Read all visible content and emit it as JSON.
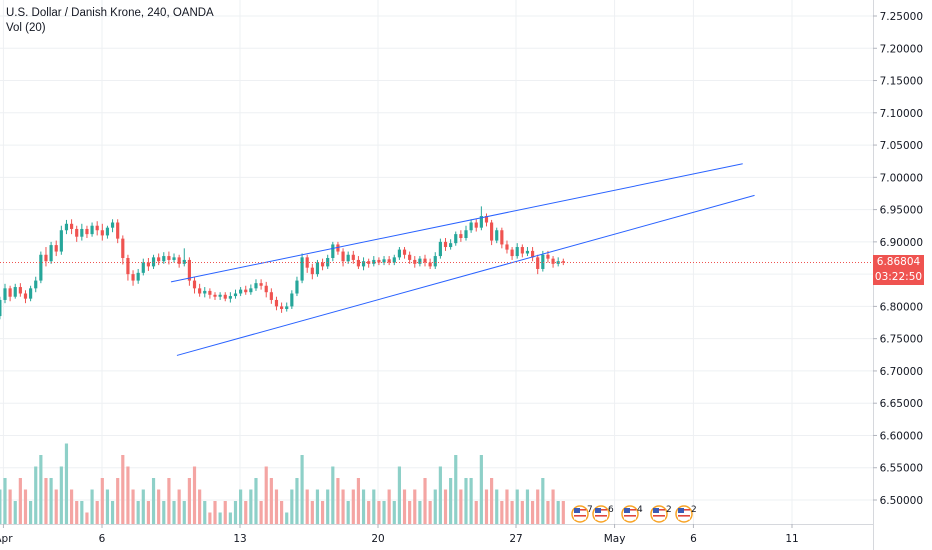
{
  "legend": {
    "symbol": "U.S. Dollar / Danish Krone, 240, OANDA",
    "volume": "Vol (20)"
  },
  "price_badge": {
    "price": "6.86804",
    "countdown": "03:22:50"
  },
  "colors": {
    "up": "#26a69a",
    "down": "#ef5350",
    "vol_up": "#8ed0c8",
    "vol_down": "#f4a5a3",
    "trendline": "#2962ff",
    "grid": "#eef0f3",
    "axis_text": "#131722"
  },
  "event_icons": [
    {
      "icon": "us-flag-icon",
      "count": "7"
    },
    {
      "icon": "us-flag-icon",
      "count": "6"
    },
    {
      "icon": "us-flag-icon",
      "count": "4"
    },
    {
      "icon": "us-flag-icon",
      "count": "2"
    },
    {
      "icon": "us-flag-icon",
      "count": "2"
    }
  ],
  "chart_data": {
    "type": "candlestick",
    "symbol": "USDDKK",
    "interval": "240",
    "ylim": [
      6.44,
      7.27
    ],
    "y_ticks": [
      "7.25000",
      "7.20000",
      "7.15000",
      "7.10000",
      "7.05000",
      "7.00000",
      "6.95000",
      "6.90000",
      "6.85000",
      "6.80000",
      "6.75000",
      "6.70000",
      "6.65000",
      "6.60000",
      "6.55000",
      "6.50000"
    ],
    "x_ticks": [
      {
        "label": "Apr",
        "day": 1
      },
      {
        "label": "6",
        "day": 6
      },
      {
        "label": "13",
        "day": 13
      },
      {
        "label": "20",
        "day": 20
      },
      {
        "label": "27",
        "day": 27
      },
      {
        "label": "May",
        "day": 32
      },
      {
        "label": "6",
        "day": 36
      },
      {
        "label": "11",
        "day": 41
      }
    ],
    "last_price": 6.86804,
    "candles": [
      [
        6.77,
        6.772,
        6.76,
        6.775,
        1
      ],
      [
        6.772,
        6.785,
        6.765,
        6.79,
        2
      ],
      [
        6.785,
        6.81,
        6.78,
        6.815,
        3
      ],
      [
        6.81,
        6.828,
        6.805,
        6.835,
        4
      ],
      [
        6.828,
        6.815,
        6.808,
        6.832,
        3
      ],
      [
        6.815,
        6.83,
        6.812,
        6.835,
        2
      ],
      [
        6.83,
        6.82,
        6.815,
        6.836,
        4
      ],
      [
        6.82,
        6.812,
        6.805,
        6.825,
        3
      ],
      [
        6.812,
        6.828,
        6.808,
        6.832,
        2
      ],
      [
        6.828,
        6.84,
        6.822,
        6.846,
        5
      ],
      [
        6.84,
        6.88,
        6.836,
        6.885,
        6
      ],
      [
        6.88,
        6.87,
        6.862,
        6.892,
        4
      ],
      [
        6.87,
        6.895,
        6.866,
        6.9,
        4
      ],
      [
        6.895,
        6.885,
        6.878,
        6.902,
        3
      ],
      [
        6.885,
        6.918,
        6.88,
        6.925,
        5
      ],
      [
        6.918,
        6.928,
        6.912,
        6.934,
        7
      ],
      [
        6.928,
        6.92,
        6.912,
        6.935,
        3
      ],
      [
        6.92,
        6.908,
        6.9,
        6.925,
        2
      ],
      [
        6.908,
        6.92,
        6.902,
        6.928,
        2
      ],
      [
        6.92,
        6.912,
        6.906,
        6.925,
        1
      ],
      [
        6.912,
        6.925,
        6.908,
        6.93,
        3
      ],
      [
        6.925,
        6.918,
        6.91,
        6.932,
        2
      ],
      [
        6.918,
        6.91,
        6.902,
        6.928,
        4
      ],
      [
        6.91,
        6.922,
        6.905,
        6.925,
        3
      ],
      [
        6.922,
        6.93,
        6.915,
        6.935,
        2
      ],
      [
        6.93,
        6.905,
        6.898,
        6.935,
        4
      ],
      [
        6.905,
        6.875,
        6.865,
        6.91,
        6
      ],
      [
        6.875,
        6.85,
        6.84,
        6.88,
        5
      ],
      [
        6.85,
        6.84,
        6.832,
        6.856,
        3
      ],
      [
        6.84,
        6.852,
        6.835,
        6.858,
        2
      ],
      [
        6.852,
        6.868,
        6.848,
        6.874,
        3
      ],
      [
        6.868,
        6.862,
        6.855,
        6.875,
        2
      ],
      [
        6.862,
        6.876,
        6.858,
        6.88,
        4
      ],
      [
        6.876,
        6.87,
        6.864,
        6.882,
        3
      ],
      [
        6.87,
        6.878,
        6.866,
        6.884,
        2
      ],
      [
        6.878,
        6.872,
        6.865,
        6.885,
        4
      ],
      [
        6.872,
        6.876,
        6.868,
        6.882,
        2
      ],
      [
        6.876,
        6.866,
        6.86,
        6.88,
        3
      ],
      [
        6.866,
        6.872,
        6.862,
        6.89,
        2
      ],
      [
        6.872,
        6.84,
        6.832,
        6.876,
        4
      ],
      [
        6.84,
        6.828,
        6.82,
        6.845,
        5
      ],
      [
        6.828,
        6.82,
        6.815,
        6.835,
        3
      ],
      [
        6.82,
        6.824,
        6.814,
        6.83,
        2
      ],
      [
        6.824,
        6.818,
        6.812,
        6.828,
        1
      ],
      [
        6.818,
        6.815,
        6.81,
        6.822,
        2
      ],
      [
        6.815,
        6.818,
        6.81,
        6.822,
        1
      ],
      [
        6.818,
        6.812,
        6.808,
        6.822,
        2
      ],
      [
        6.812,
        6.816,
        6.806,
        6.822,
        1
      ],
      [
        6.816,
        6.82,
        6.812,
        6.826,
        2
      ],
      [
        6.82,
        6.826,
        6.816,
        6.83,
        3
      ],
      [
        6.826,
        6.822,
        6.818,
        6.832,
        2
      ],
      [
        6.822,
        6.828,
        6.818,
        6.834,
        3
      ],
      [
        6.828,
        6.836,
        6.824,
        6.842,
        4
      ],
      [
        6.836,
        6.832,
        6.826,
        6.842,
        2
      ],
      [
        6.832,
        6.822,
        6.814,
        6.838,
        5
      ],
      [
        6.822,
        6.81,
        6.804,
        6.828,
        4
      ],
      [
        6.81,
        6.8,
        6.794,
        6.815,
        3
      ],
      [
        6.8,
        6.796,
        6.79,
        6.806,
        2
      ],
      [
        6.796,
        6.8,
        6.792,
        6.806,
        1
      ],
      [
        6.8,
        6.82,
        6.796,
        6.825,
        3
      ],
      [
        6.82,
        6.84,
        6.816,
        6.846,
        4
      ],
      [
        6.84,
        6.876,
        6.836,
        6.882,
        6
      ],
      [
        6.876,
        6.86,
        6.852,
        6.88,
        3
      ],
      [
        6.86,
        6.85,
        6.842,
        6.866,
        2
      ],
      [
        6.85,
        6.868,
        6.846,
        6.872,
        3
      ],
      [
        6.868,
        6.862,
        6.856,
        6.874,
        2
      ],
      [
        6.862,
        6.875,
        6.858,
        6.88,
        3
      ],
      [
        6.875,
        6.896,
        6.87,
        6.9,
        5
      ],
      [
        6.896,
        6.885,
        6.88,
        6.9,
        4
      ],
      [
        6.885,
        6.87,
        6.862,
        6.89,
        3
      ],
      [
        6.87,
        6.88,
        6.866,
        6.885,
        2
      ],
      [
        6.88,
        6.872,
        6.866,
        6.886,
        3
      ],
      [
        6.872,
        6.862,
        6.858,
        6.878,
        4
      ],
      [
        6.862,
        6.87,
        6.856,
        6.876,
        3
      ],
      [
        6.87,
        6.866,
        6.86,
        6.874,
        2
      ],
      [
        6.866,
        6.872,
        6.862,
        6.878,
        3
      ],
      [
        6.872,
        6.868,
        6.864,
        6.876,
        2
      ],
      [
        6.868,
        6.873,
        6.864,
        6.878,
        2
      ],
      [
        6.873,
        6.868,
        6.864,
        6.878,
        3
      ],
      [
        6.868,
        6.876,
        6.864,
        6.88,
        2
      ],
      [
        6.876,
        6.888,
        6.872,
        6.892,
        5
      ],
      [
        6.888,
        6.88,
        6.874,
        6.892,
        3
      ],
      [
        6.88,
        6.872,
        6.866,
        6.885,
        2
      ],
      [
        6.872,
        6.866,
        6.86,
        6.878,
        3
      ],
      [
        6.866,
        6.874,
        6.862,
        6.878,
        2
      ],
      [
        6.874,
        6.868,
        6.862,
        6.88,
        4
      ],
      [
        6.868,
        6.862,
        6.858,
        6.874,
        2
      ],
      [
        6.862,
        6.878,
        6.858,
        6.884,
        3
      ],
      [
        6.878,
        6.9,
        6.874,
        6.905,
        5
      ],
      [
        6.9,
        6.892,
        6.886,
        6.906,
        3
      ],
      [
        6.892,
        6.898,
        6.888,
        6.904,
        4
      ],
      [
        6.898,
        6.912,
        6.894,
        6.916,
        6
      ],
      [
        6.912,
        6.906,
        6.9,
        6.918,
        3
      ],
      [
        6.906,
        6.918,
        6.902,
        6.925,
        4
      ],
      [
        6.918,
        6.93,
        6.914,
        6.935,
        4
      ],
      [
        6.93,
        6.922,
        6.916,
        6.935,
        2
      ],
      [
        6.922,
        6.94,
        6.918,
        6.955,
        6
      ],
      [
        6.94,
        6.93,
        6.924,
        6.944,
        3
      ],
      [
        6.93,
        6.902,
        6.895,
        6.934,
        4
      ],
      [
        6.902,
        6.918,
        6.898,
        6.922,
        3
      ],
      [
        6.918,
        6.896,
        6.89,
        6.922,
        2
      ],
      [
        6.896,
        6.888,
        6.882,
        6.902,
        3
      ],
      [
        6.888,
        6.878,
        6.872,
        6.892,
        2
      ],
      [
        6.878,
        6.892,
        6.874,
        6.898,
        3
      ],
      [
        6.892,
        6.882,
        6.876,
        6.896,
        2
      ],
      [
        6.882,
        6.886,
        6.878,
        6.892,
        3
      ],
      [
        6.886,
        6.876,
        6.87,
        6.892,
        2
      ],
      [
        6.876,
        6.858,
        6.85,
        6.88,
        3
      ],
      [
        6.858,
        6.88,
        6.854,
        6.886,
        4
      ],
      [
        6.88,
        6.874,
        6.868,
        6.886,
        2
      ],
      [
        6.874,
        6.866,
        6.86,
        6.878,
        3
      ],
      [
        6.866,
        6.87,
        6.862,
        6.876,
        2
      ],
      [
        6.87,
        6.868,
        6.864,
        6.874,
        2
      ]
    ],
    "trendlines": [
      {
        "name": "upper",
        "from": [
          9.5,
          6.838
        ],
        "to": [
          38.5,
          7.021
        ]
      },
      {
        "name": "lower",
        "from": [
          9.8,
          6.724
        ],
        "to": [
          39.1,
          6.972
        ]
      }
    ]
  }
}
